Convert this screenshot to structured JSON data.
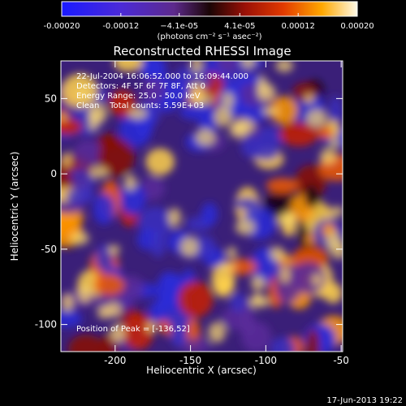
{
  "colorbar": {
    "ticks": [
      "-0.00020",
      "-0.00012",
      "−4.1e-05",
      "4.1e-05",
      "0.00012",
      "0.00020"
    ],
    "tick_values": [
      -0.0002,
      -0.00012,
      -4.1e-05,
      4.1e-05,
      0.00012,
      0.0002
    ],
    "range": [
      -0.0002,
      0.0002
    ],
    "unit_label": "(photons cm⁻² s⁻¹ asec⁻²)"
  },
  "chart_data": {
    "type": "heatmap",
    "title": "Reconstructed RHESSI Image",
    "xlabel": "Heliocentric X (arcsec)",
    "ylabel": "Heliocentric Y (arcsec)",
    "xlim": [
      -236,
      -49
    ],
    "ylim": [
      -118,
      75
    ],
    "xticks": [
      -200,
      -150,
      -100,
      -50
    ],
    "yticks": [
      -100,
      -50,
      0,
      50
    ],
    "colormap": "RHESSI rainbow (blue-purple-red-orange-yellow-white)",
    "peak_position": [
      -136,
      52
    ],
    "annotations": [
      "22-Jul-2004 16:06:52.000 to 16:09:44.000",
      "Detectors: 4F 5F 6F 7F 8F, Att 0",
      "Energy Range: 25.0 - 50.0 keV",
      "Clean    Total counts: 5.59E+03",
      "Position of Peak = [-136,52]"
    ]
  },
  "footer": {
    "timestamp": "17-Jun-2013 19:22"
  }
}
